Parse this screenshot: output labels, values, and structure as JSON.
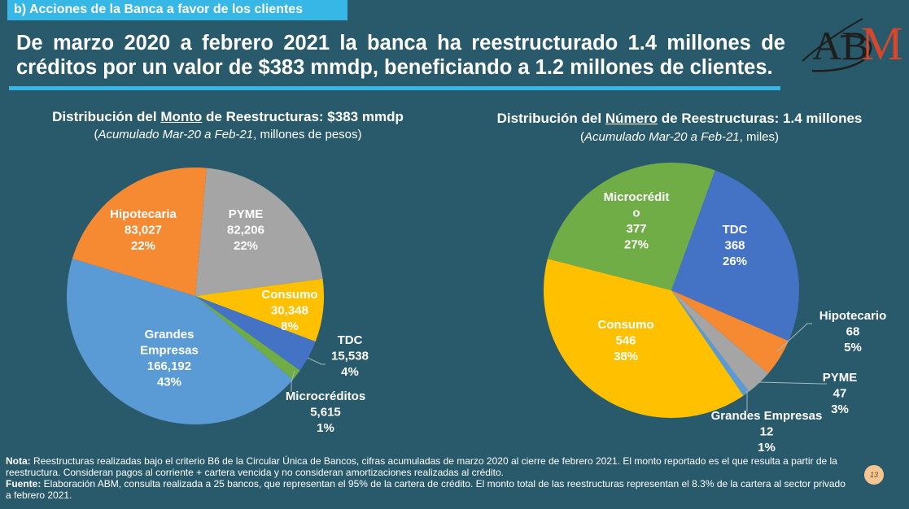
{
  "section_tab": "b) Acciones de la Banca a favor de los clientes",
  "headline": "De marzo 2020 a febrero 2021 la banca ha reestructurado 1.4 millones de créditos por un valor de $383 mmdp, beneficiando a 1.2 millones de clientes.",
  "logo": {
    "text_a_b": "AB",
    "text_m": "M",
    "name": "ABM"
  },
  "colors": {
    "background": "#285a6b",
    "accent": "#36b7e6",
    "orange": "#f58a33",
    "gray": "#a5a5a5",
    "yellow": "#ffc000",
    "dark_blue": "#4472c4",
    "green": "#70ad47",
    "light_blue": "#5b9bd5",
    "logo_red": "#d9472b",
    "logo_dark": "#1e1e1e"
  },
  "chart_data": [
    {
      "type": "pie",
      "title_prefix": "Distribución del ",
      "title_emph": "Monto",
      "title_suffix": " de Reestructuras: $383 mmdp",
      "subtitle_open": "(",
      "subtitle_italic": "Acumulado Mar-20 a Feb-21",
      "subtitle_rest": ", millones de pesos)",
      "unit": "millones de pesos",
      "start_angle_deg": 5,
      "slices": [
        {
          "label": "PYME",
          "value": 82206,
          "value_text": "82,206",
          "percent": "22%",
          "color": "#a5a5a5"
        },
        {
          "label": "Consumo",
          "value": 30348,
          "value_text": "30,348",
          "percent": "8%",
          "color": "#ffc000"
        },
        {
          "label": "TDC",
          "value": 15538,
          "value_text": "15,538",
          "percent": "4%",
          "color": "#4472c4"
        },
        {
          "label": "Microcréditos",
          "value": 5615,
          "value_text": "5,615",
          "percent": "1%",
          "color": "#70ad47"
        },
        {
          "label": "Grandes Empresas",
          "value": 166192,
          "value_text": "166,192",
          "percent": "43%",
          "color": "#5b9bd5"
        },
        {
          "label": "Hipotecaria",
          "value": 83027,
          "value_text": "83,027",
          "percent": "22%",
          "color": "#f58a33"
        }
      ]
    },
    {
      "type": "pie",
      "title_prefix": "Distribución del ",
      "title_emph": "Número",
      "title_suffix": " de Reestructuras: 1.4 millones",
      "subtitle_open": "(",
      "subtitle_italic": "Acumulado Mar-20 a Feb-21",
      "subtitle_rest": ", miles)",
      "unit": "miles",
      "start_angle_deg": 20,
      "slices": [
        {
          "label": "TDC",
          "value": 368,
          "value_text": "368",
          "percent": "26%",
          "color": "#4472c4"
        },
        {
          "label": "Hipotecario",
          "value": 68,
          "value_text": "68",
          "percent": "5%",
          "color": "#f58a33"
        },
        {
          "label": "PYME",
          "value": 47,
          "value_text": "47",
          "percent": "3%",
          "color": "#a5a5a5"
        },
        {
          "label": "Grandes Empresas",
          "value": 12,
          "value_text": "12",
          "percent": "1%",
          "color": "#5b9bd5"
        },
        {
          "label": "Consumo",
          "value": 546,
          "value_text": "546",
          "percent": "38%",
          "color": "#ffc000"
        },
        {
          "label": "Microcrédito",
          "value": 377,
          "value_text": "377",
          "percent": "27%",
          "color": "#70ad47"
        }
      ]
    }
  ],
  "footnote": {
    "nota_label": "Nota:",
    "nota_text": " Reestructuras realizadas bajo el criterio B6 de la Circular Única de Bancos, cifras acumuladas de marzo 2020 al cierre de febrero 2021. El monto reportado es el que resulta a partir de la reestructura. Consideran pagos al corriente + cartera vencida y no consideran amortizaciones realizadas al crédito.",
    "fuente_label": "Fuente:",
    "fuente_text": " Elaboración ABM, consulta realizada a 25 bancos, que representan el 95% de la cartera de crédito. El monto total de las reestructuras representan el 8.3% de la cartera al sector privado a febrero 2021."
  },
  "page_number": "13"
}
